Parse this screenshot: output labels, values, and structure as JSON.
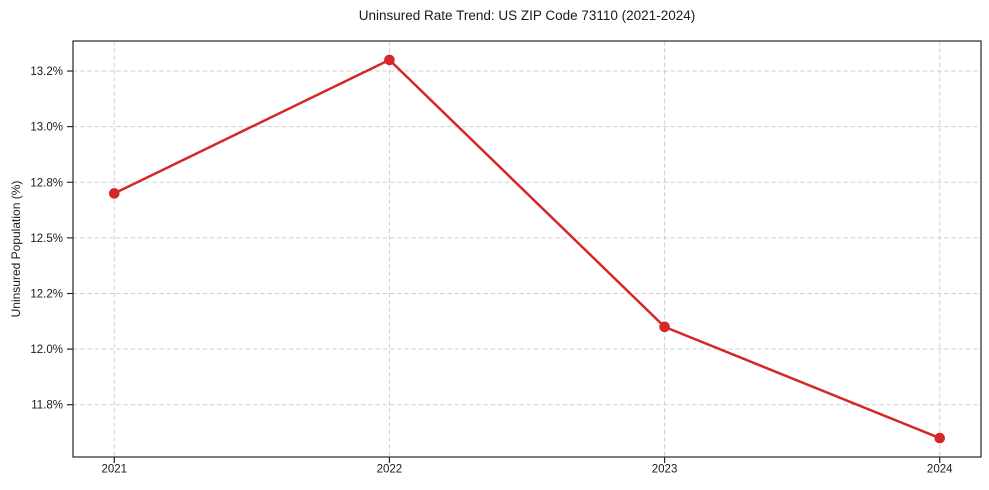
{
  "chart_data": {
    "type": "line",
    "title": "Uninsured Rate Trend: US ZIP Code 73110 (2021-2024)",
    "xlabel": "",
    "ylabel": "Uninsured Population (%)",
    "x": [
      2021,
      2022,
      2023,
      2024
    ],
    "values": [
      12.7,
      13.3,
      12.1,
      11.6
    ],
    "xlim": [
      2020.85,
      2024.15
    ],
    "ylim": [
      11.515,
      13.385
    ],
    "x_ticks": [
      {
        "value": 2021,
        "label": "2021"
      },
      {
        "value": 2022,
        "label": "2022"
      },
      {
        "value": 2023,
        "label": "2023"
      },
      {
        "value": 2024,
        "label": "2024"
      }
    ],
    "y_ticks": [
      {
        "value": 13.25,
        "label": "13.2%"
      },
      {
        "value": 13.0,
        "label": "13.0%"
      },
      {
        "value": 12.75,
        "label": "12.8%"
      },
      {
        "value": 12.5,
        "label": "12.5%"
      },
      {
        "value": 12.25,
        "label": "12.2%"
      },
      {
        "value": 12.0,
        "label": "12.0%"
      },
      {
        "value": 11.75,
        "label": "11.8%"
      }
    ],
    "grid": true,
    "grid_style": "dashed",
    "legend": "none",
    "styles": {
      "line_color": "#d62728",
      "marker_color": "#d62728",
      "grid_color": "#cfcfcf",
      "spine_color": "#262626",
      "text_color": "#1a1a1a",
      "background": "#ffffff"
    }
  }
}
